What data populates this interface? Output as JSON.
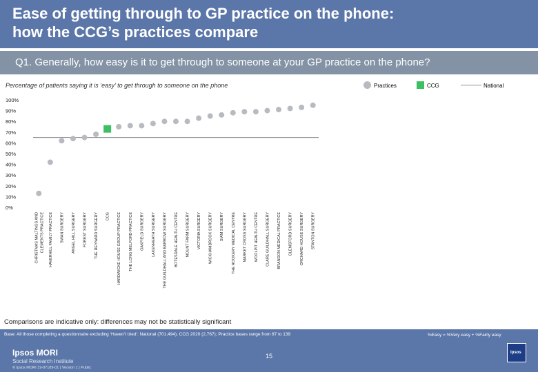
{
  "title": "Ease of getting through to GP practice on the phone:\nhow the CCG’s practices compare",
  "question": "Q1. Generally, how easy is it to get through to someone at your GP practice on the phone?",
  "subtitle": "Percentage of patients saying it is ‘easy’ to get through to someone on the phone",
  "legend": {
    "practices": "Practices",
    "ccg": "CCG",
    "national": "National"
  },
  "colors": {
    "practice": "#b7bbc0",
    "ccg": "#3fbf63",
    "national": "#8a8a8a",
    "header": "#5b76a8"
  },
  "chart_data": {
    "type": "scatter",
    "y_ticks": [
      "100%",
      "90%",
      "80%",
      "70%",
      "60%",
      "50%",
      "40%",
      "30%",
      "20%",
      "10%",
      "0%"
    ],
    "ylim": [
      0,
      100
    ],
    "national_value": 65,
    "points": [
      {
        "label": "CHRISTMAS MALTINGS AND CLEMENTS PRACTICE",
        "value": 13,
        "type": "practice"
      },
      {
        "label": "HAVERHILL FAMILY PRACTICE",
        "value": 42,
        "type": "practice"
      },
      {
        "label": "SWAN SURGERY",
        "value": 62,
        "type": "practice"
      },
      {
        "label": "ANGEL HILL SURGERY",
        "value": 64,
        "type": "practice"
      },
      {
        "label": "FOREST SURGERY",
        "value": 65,
        "type": "practice"
      },
      {
        "label": "THE REYNARD SURGERY",
        "value": 68,
        "type": "practice"
      },
      {
        "label": "CCG",
        "value": 73,
        "type": "ccg"
      },
      {
        "label": "HARDWICKE HOUSE GROUP PRACTICE",
        "value": 75,
        "type": "practice"
      },
      {
        "label": "THE LONG MELFORD PRACTICE",
        "value": 76,
        "type": "practice"
      },
      {
        "label": "OAKFIELD SURGERY",
        "value": 76,
        "type": "practice"
      },
      {
        "label": "LAKENHEATH SURGERY",
        "value": 78,
        "type": "practice"
      },
      {
        "label": "THE GUILDHALL AND BARROW SURGERY",
        "value": 80,
        "type": "practice"
      },
      {
        "label": "BOTESDALE HEALTH CENTRE",
        "value": 80,
        "type": "practice"
      },
      {
        "label": "MOUNT FARM SURGERY",
        "value": 80,
        "type": "practice"
      },
      {
        "label": "VICTORIA SURGERY",
        "value": 83,
        "type": "practice"
      },
      {
        "label": "WICKHAMBROOK SURGERY",
        "value": 85,
        "type": "practice"
      },
      {
        "label": "SIAM SURGERY",
        "value": 86,
        "type": "practice"
      },
      {
        "label": "THE ROOKERY MEDICAL CENTRE",
        "value": 88,
        "type": "practice"
      },
      {
        "label": "MARKET CROSS SURGERY",
        "value": 89,
        "type": "practice"
      },
      {
        "label": "WOOLPIT HEALTH CENTRE",
        "value": 89,
        "type": "practice"
      },
      {
        "label": "CLARE GUILDHALL SURGERY",
        "value": 90,
        "type": "practice"
      },
      {
        "label": "BRANDON MEDICAL PRACTICE",
        "value": 91,
        "type": "practice"
      },
      {
        "label": "GLEMSFORD SURGERY",
        "value": 92,
        "type": "practice"
      },
      {
        "label": "ORCHARD HOUSE SURGERY",
        "value": 93,
        "type": "practice"
      },
      {
        "label": "STANTON SURGERY",
        "value": 95,
        "type": "practice"
      }
    ]
  },
  "note": "Comparisons are indicative only: differences may not be statistically significant",
  "footer": {
    "base": "Base: All those completing a questionnaire excluding ‘Haven’t tried’: National (701,494); CCG 2020 (2,767); Practice bases range from 87 to 139",
    "formula": "%Easy = %Very easy + %Fairly easy",
    "logo": "Ipsos MORI",
    "logo_sub": "Social Research Institute",
    "page": "15",
    "copyright": "© Ipsos MORI    19-07189-01 | Version 1 | Public",
    "badge": "Ipsos"
  }
}
